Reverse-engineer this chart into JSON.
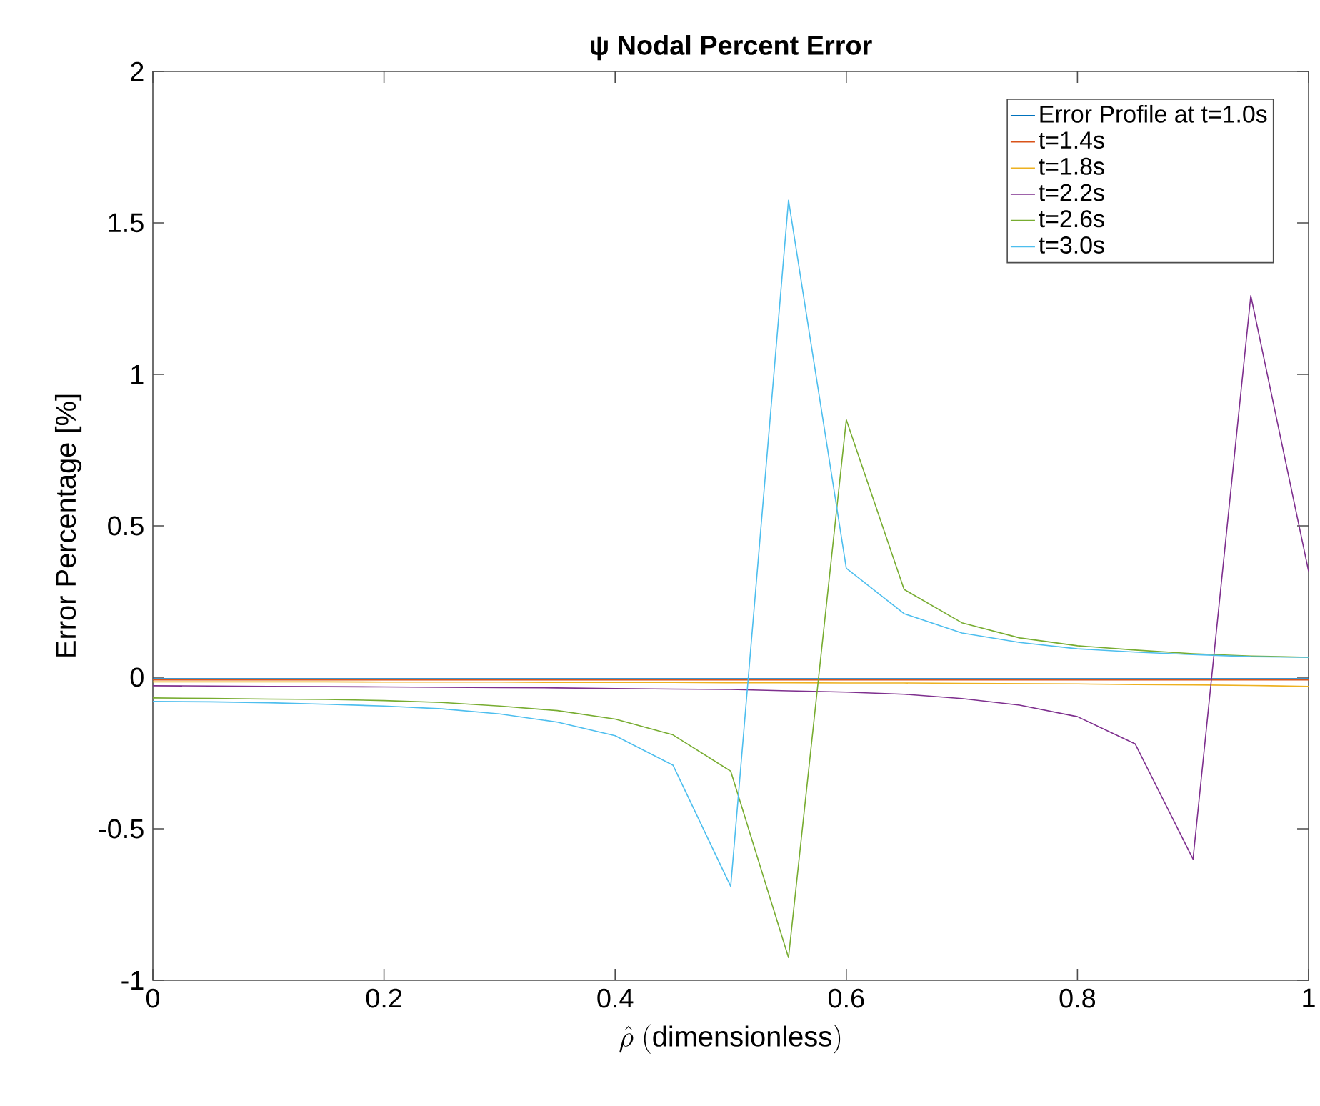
{
  "chart_data": {
    "type": "line",
    "title": "ψ **Nodal Percent Error**",
    "xlabel": "\\hat{\\rho}\\ (\\mathrm{dimensionless})",
    "ylabel": "Error Percentage [%]",
    "x": [
      0,
      0.05,
      0.1,
      0.15,
      0.2,
      0.25,
      0.3,
      0.35,
      0.4,
      0.45,
      0.5,
      0.55,
      0.6,
      0.65,
      0.7,
      0.75,
      0.8,
      0.85,
      0.9,
      0.95,
      1.0
    ],
    "series": [
      {
        "name": "Error Profile at t=1.0s",
        "color": "#0072bd",
        "values": [
          -0.005,
          -0.005,
          -0.005,
          -0.005,
          -0.005,
          -0.005,
          -0.005,
          -0.005,
          -0.005,
          -0.005,
          -0.005,
          -0.005,
          -0.005,
          -0.005,
          -0.005,
          -0.005,
          -0.005,
          -0.005,
          -0.005,
          -0.005,
          -0.005
        ]
      },
      {
        "name": "t=1.4s",
        "color": "#d95319",
        "values": [
          -0.009,
          -0.009,
          -0.009,
          -0.009,
          -0.009,
          -0.009,
          -0.009,
          -0.009,
          -0.009,
          -0.009,
          -0.009,
          -0.009,
          -0.009,
          -0.009,
          -0.009,
          -0.009,
          -0.009,
          -0.009,
          -0.009,
          -0.009,
          -0.009
        ]
      },
      {
        "name": "t=1.8s",
        "color": "#edb120",
        "values": [
          -0.015,
          -0.015,
          -0.015,
          -0.015,
          -0.016,
          -0.016,
          -0.016,
          -0.017,
          -0.017,
          -0.017,
          -0.018,
          -0.018,
          -0.019,
          -0.019,
          -0.02,
          -0.021,
          -0.022,
          -0.024,
          -0.025,
          -0.027,
          -0.03
        ]
      },
      {
        "name": "t=2.2s",
        "color": "#7e2f8e",
        "values": [
          -0.028,
          -0.029,
          -0.03,
          -0.031,
          -0.032,
          -0.033,
          -0.034,
          -0.035,
          -0.037,
          -0.039,
          -0.04,
          -0.045,
          -0.049,
          -0.056,
          -0.07,
          -0.092,
          -0.13,
          -0.22,
          -0.6,
          1.26,
          0.35
        ]
      },
      {
        "name": "t=2.6s",
        "color": "#77ac30",
        "values": [
          -0.068,
          -0.07,
          -0.072,
          -0.073,
          -0.077,
          -0.083,
          -0.095,
          -0.11,
          -0.138,
          -0.19,
          -0.31,
          -0.925,
          0.85,
          0.29,
          0.18,
          0.13,
          0.104,
          0.09,
          0.078,
          0.07,
          0.066
        ]
      },
      {
        "name": "t=3.0s",
        "color": "#4dbeee",
        "values": [
          -0.08,
          -0.081,
          -0.084,
          -0.089,
          -0.095,
          -0.104,
          -0.121,
          -0.148,
          -0.193,
          -0.29,
          -0.69,
          1.575,
          0.36,
          0.21,
          0.146,
          0.115,
          0.094,
          0.083,
          0.075,
          0.068,
          0.066
        ]
      }
    ],
    "xlim": [
      0,
      1
    ],
    "ylim": [
      -1,
      2
    ],
    "xticks": [
      0,
      0.2,
      0.4,
      0.6,
      0.8,
      1
    ],
    "yticks": [
      -1,
      -0.5,
      0,
      0.5,
      1,
      1.5,
      2
    ],
    "grid": false,
    "legend": "top right",
    "marker": "none",
    "line_style": "solid"
  }
}
